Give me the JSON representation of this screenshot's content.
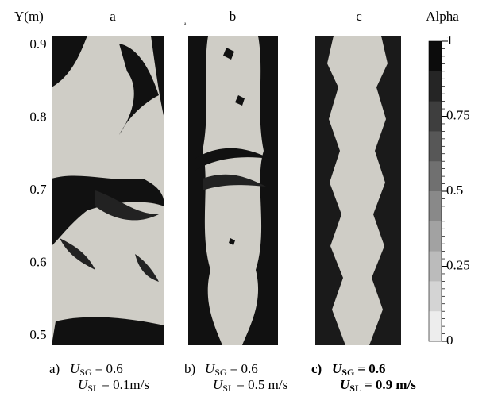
{
  "figure": {
    "y_axis": {
      "label": "Y(m)",
      "ticks": [
        0.9,
        0.8,
        0.7,
        0.6,
        0.5
      ]
    },
    "stray_mark": "a",
    "panels": [
      {
        "label": "a",
        "caption": {
          "prefix": "a)",
          "symbol": "U",
          "lines": [
            {
              "sub": "SG",
              "rest": "= 0.6"
            },
            {
              "sub": "SL",
              "rest": "= 0.1m/s"
            }
          ],
          "bold": false
        }
      },
      {
        "label": "b",
        "caption": {
          "prefix": "b)",
          "symbol": "U",
          "lines": [
            {
              "sub": "SG",
              "rest": "= 0.6"
            },
            {
              "sub": "SL",
              "rest": "= 0.5 m/s"
            }
          ],
          "bold": false
        }
      },
      {
        "label": "c",
        "caption": {
          "prefix": "c)",
          "symbol": "U",
          "lines": [
            {
              "sub": "SG",
              "rest": "= 0.6"
            },
            {
              "sub": "SL",
              "rest": "= 0.9 m/s"
            }
          ],
          "bold": true
        }
      }
    ],
    "colorbar": {
      "label": "Alpha",
      "ticks": [
        1,
        0.75,
        0.5,
        0.25,
        0
      ]
    }
  }
}
